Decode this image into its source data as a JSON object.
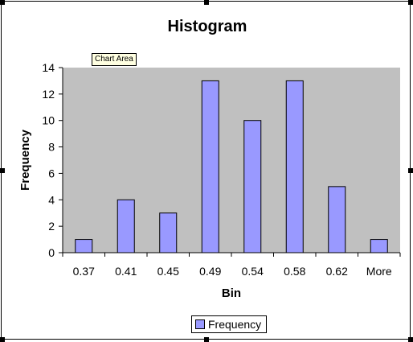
{
  "tooltip": "Chart Area",
  "chart_data": {
    "type": "bar",
    "title": "Histogram",
    "xlabel": "Bin",
    "ylabel": "Frequency",
    "categories": [
      "0.37",
      "0.41",
      "0.45",
      "0.49",
      "0.54",
      "0.58",
      "0.62",
      "More"
    ],
    "series": [
      {
        "name": "Frequency",
        "values": [
          1,
          4,
          3,
          13,
          10,
          13,
          5,
          1
        ]
      }
    ],
    "ylim": [
      0,
      14
    ],
    "yticks": [
      "0",
      "2",
      "4",
      "6",
      "8",
      "10",
      "12",
      "14"
    ],
    "legend": "bottom",
    "grid": false
  },
  "colors": {
    "plot_background": "#c0c0c0",
    "bar_fill": "#9999ff",
    "bar_stroke": "#000000"
  }
}
